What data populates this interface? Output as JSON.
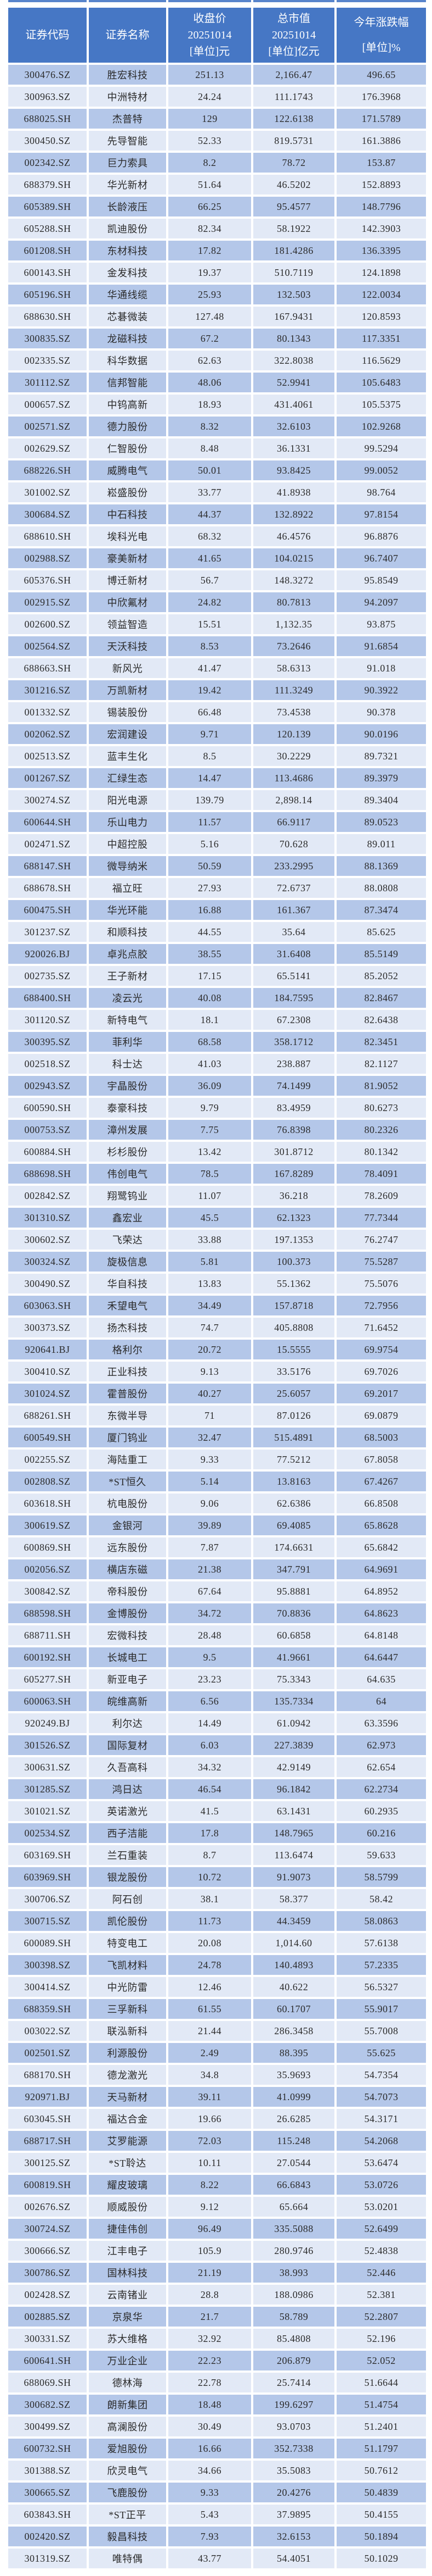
{
  "colors": {
    "header_bg": "#4677c5",
    "header_text": "#ffffff",
    "row_dark": "#b4c7e9",
    "row_light": "#e2e9f6",
    "text": "#2a2a2a"
  },
  "table": {
    "headers": [
      {
        "id": "code",
        "lines": [
          "证券代码"
        ]
      },
      {
        "id": "name",
        "lines": [
          "证券名称"
        ]
      },
      {
        "id": "close",
        "lines": [
          "收盘价",
          "20251014",
          "[单位]元"
        ]
      },
      {
        "id": "mktcap",
        "lines": [
          "总市值",
          "20251014",
          "[单位]亿元"
        ]
      },
      {
        "id": "ytd",
        "lines": [
          "今年涨跌幅",
          "[单位]%"
        ]
      }
    ],
    "rows": [
      [
        "300476.SZ",
        "胜宏科技",
        "251.13",
        "2,166.47",
        "496.65"
      ],
      [
        "300963.SZ",
        "中洲特材",
        "24.24",
        "111.1743",
        "176.3968"
      ],
      [
        "688025.SH",
        "杰普特",
        "129",
        "122.6138",
        "171.5789"
      ],
      [
        "300450.SZ",
        "先导智能",
        "52.33",
        "819.5731",
        "161.3886"
      ],
      [
        "002342.SZ",
        "巨力索具",
        "8.2",
        "78.72",
        "153.87"
      ],
      [
        "688379.SH",
        "华光新材",
        "51.64",
        "46.5202",
        "152.8893"
      ],
      [
        "605389.SH",
        "长龄液压",
        "66.25",
        "95.4577",
        "148.7796"
      ],
      [
        "605288.SH",
        "凯迪股份",
        "82.34",
        "58.1922",
        "142.3903"
      ],
      [
        "601208.SH",
        "东材科技",
        "17.82",
        "181.4286",
        "136.3395"
      ],
      [
        "600143.SH",
        "金发科技",
        "19.37",
        "510.7119",
        "124.1898"
      ],
      [
        "605196.SH",
        "华通线缆",
        "25.93",
        "132.503",
        "122.0034"
      ],
      [
        "688630.SH",
        "芯碁微装",
        "127.48",
        "167.9431",
        "120.8593"
      ],
      [
        "300835.SZ",
        "龙磁科技",
        "67.2",
        "80.1343",
        "117.3351"
      ],
      [
        "002335.SZ",
        "科华数据",
        "62.63",
        "322.8038",
        "116.5629"
      ],
      [
        "301112.SZ",
        "信邦智能",
        "48.06",
        "52.9941",
        "105.6483"
      ],
      [
        "000657.SZ",
        "中钨高新",
        "18.93",
        "431.4061",
        "105.5375"
      ],
      [
        "002571.SZ",
        "德力股份",
        "8.32",
        "32.6103",
        "102.9268"
      ],
      [
        "002629.SZ",
        "仁智股份",
        "8.48",
        "36.1331",
        "99.5294"
      ],
      [
        "688226.SH",
        "威腾电气",
        "50.01",
        "93.8425",
        "99.0052"
      ],
      [
        "301002.SZ",
        "崧盛股份",
        "33.77",
        "41.8938",
        "98.764"
      ],
      [
        "300684.SZ",
        "中石科技",
        "44.37",
        "132.8922",
        "97.8154"
      ],
      [
        "688610.SH",
        "埃科光电",
        "68.32",
        "46.4576",
        "96.8876"
      ],
      [
        "002988.SZ",
        "豪美新材",
        "41.65",
        "104.0215",
        "96.7407"
      ],
      [
        "605376.SH",
        "博迁新材",
        "56.7",
        "148.3272",
        "95.8549"
      ],
      [
        "002915.SZ",
        "中欣氟材",
        "24.82",
        "80.7813",
        "94.2097"
      ],
      [
        "002600.SZ",
        "领益智造",
        "15.51",
        "1,132.35",
        "93.875"
      ],
      [
        "002564.SZ",
        "天沃科技",
        "8.53",
        "73.2646",
        "91.6854"
      ],
      [
        "688663.SH",
        "新风光",
        "41.47",
        "58.6313",
        "91.018"
      ],
      [
        "301216.SZ",
        "万凯新材",
        "19.42",
        "111.3249",
        "90.3922"
      ],
      [
        "001332.SZ",
        "锡装股份",
        "66.48",
        "73.4538",
        "90.378"
      ],
      [
        "002062.SZ",
        "宏润建设",
        "9.71",
        "120.139",
        "90.0196"
      ],
      [
        "002513.SZ",
        "蓝丰生化",
        "8.5",
        "30.2229",
        "89.7321"
      ],
      [
        "001267.SZ",
        "汇绿生态",
        "14.47",
        "113.4686",
        "89.3979"
      ],
      [
        "300274.SZ",
        "阳光电源",
        "139.79",
        "2,898.14",
        "89.3404"
      ],
      [
        "600644.SH",
        "乐山电力",
        "11.57",
        "66.9117",
        "89.0523"
      ],
      [
        "002471.SZ",
        "中超控股",
        "5.16",
        "70.628",
        "89.011"
      ],
      [
        "688147.SH",
        "微导纳米",
        "50.59",
        "233.2995",
        "88.1369"
      ],
      [
        "688678.SH",
        "福立旺",
        "27.93",
        "72.6737",
        "88.0808"
      ],
      [
        "600475.SH",
        "华光环能",
        "16.88",
        "161.367",
        "87.3474"
      ],
      [
        "301237.SZ",
        "和顺科技",
        "44.55",
        "35.64",
        "85.625"
      ],
      [
        "920026.BJ",
        "卓兆点胶",
        "38.55",
        "31.6408",
        "85.5149"
      ],
      [
        "002735.SZ",
        "王子新材",
        "17.15",
        "65.5141",
        "85.2052"
      ],
      [
        "688400.SH",
        "凌云光",
        "40.08",
        "184.7595",
        "82.8467"
      ],
      [
        "301120.SZ",
        "新特电气",
        "18.1",
        "67.2308",
        "82.6438"
      ],
      [
        "300395.SZ",
        "菲利华",
        "68.58",
        "358.1712",
        "82.3451"
      ],
      [
        "002518.SZ",
        "科士达",
        "41.03",
        "238.887",
        "82.1127"
      ],
      [
        "002943.SZ",
        "宇晶股份",
        "36.09",
        "74.1499",
        "81.9052"
      ],
      [
        "600590.SH",
        "泰豪科技",
        "9.79",
        "83.4959",
        "80.6273"
      ],
      [
        "000753.SZ",
        "漳州发展",
        "7.75",
        "76.8398",
        "80.2326"
      ],
      [
        "600884.SH",
        "杉杉股份",
        "13.42",
        "301.8712",
        "80.1342"
      ],
      [
        "688698.SH",
        "伟创电气",
        "78.5",
        "167.8289",
        "78.4091"
      ],
      [
        "002842.SZ",
        "翔鹭钨业",
        "11.07",
        "36.218",
        "78.2609"
      ],
      [
        "301310.SZ",
        "鑫宏业",
        "45.5",
        "62.1323",
        "77.7344"
      ],
      [
        "300602.SZ",
        "飞荣达",
        "33.88",
        "197.1353",
        "76.2747"
      ],
      [
        "300324.SZ",
        "旋极信息",
        "5.81",
        "100.373",
        "75.5287"
      ],
      [
        "300490.SZ",
        "华自科技",
        "13.83",
        "55.1362",
        "75.5076"
      ],
      [
        "603063.SH",
        "禾望电气",
        "34.49",
        "157.8718",
        "72.7956"
      ],
      [
        "300373.SZ",
        "扬杰科技",
        "74.7",
        "405.8808",
        "71.6452"
      ],
      [
        "920641.BJ",
        "格利尔",
        "20.72",
        "15.5555",
        "69.9754"
      ],
      [
        "300410.SZ",
        "正业科技",
        "9.13",
        "33.5176",
        "69.7026"
      ],
      [
        "301024.SZ",
        "霍普股份",
        "40.27",
        "25.6057",
        "69.2017"
      ],
      [
        "688261.SH",
        "东微半导",
        "71",
        "87.0126",
        "69.0879"
      ],
      [
        "600549.SH",
        "厦门钨业",
        "32.47",
        "515.4891",
        "68.5003"
      ],
      [
        "002255.SZ",
        "海陆重工",
        "9.33",
        "77.5212",
        "67.8058"
      ],
      [
        "002808.SZ",
        "*ST恒久",
        "5.14",
        "13.8163",
        "67.4267"
      ],
      [
        "603618.SH",
        "杭电股份",
        "9.06",
        "62.6386",
        "66.8508"
      ],
      [
        "300619.SZ",
        "金银河",
        "39.89",
        "69.4085",
        "65.8628"
      ],
      [
        "600869.SH",
        "远东股份",
        "7.87",
        "174.6631",
        "65.6842"
      ],
      [
        "002056.SZ",
        "横店东磁",
        "21.38",
        "347.791",
        "64.9691"
      ],
      [
        "300842.SZ",
        "帝科股份",
        "67.64",
        "95.8881",
        "64.8952"
      ],
      [
        "688598.SH",
        "金博股份",
        "34.72",
        "70.8836",
        "64.8623"
      ],
      [
        "688711.SH",
        "宏微科技",
        "28.48",
        "60.6858",
        "64.8148"
      ],
      [
        "600192.SH",
        "长城电工",
        "9.5",
        "41.9661",
        "64.6447"
      ],
      [
        "605277.SH",
        "新亚电子",
        "23.23",
        "75.3343",
        "64.635"
      ],
      [
        "600063.SH",
        "皖维高新",
        "6.56",
        "135.7334",
        "64"
      ],
      [
        "920249.BJ",
        "利尔达",
        "14.49",
        "61.0942",
        "63.3596"
      ],
      [
        "301526.SZ",
        "国际复材",
        "6.03",
        "227.3839",
        "62.973"
      ],
      [
        "300631.SZ",
        "久吾高科",
        "34.32",
        "42.9149",
        "62.654"
      ],
      [
        "301285.SZ",
        "鸿日达",
        "46.54",
        "96.1842",
        "62.2734"
      ],
      [
        "301021.SZ",
        "英诺激光",
        "41.5",
        "63.1431",
        "60.2935"
      ],
      [
        "002534.SZ",
        "西子洁能",
        "17.8",
        "148.7965",
        "60.216"
      ],
      [
        "603169.SH",
        "兰石重装",
        "8.7",
        "113.6474",
        "59.633"
      ],
      [
        "603969.SH",
        "银龙股份",
        "10.72",
        "91.9073",
        "58.5799"
      ],
      [
        "300706.SZ",
        "阿石创",
        "38.1",
        "58.377",
        "58.42"
      ],
      [
        "300715.SZ",
        "凯伦股份",
        "11.73",
        "44.3459",
        "58.0863"
      ],
      [
        "600089.SH",
        "特变电工",
        "20.08",
        "1,014.60",
        "57.6138"
      ],
      [
        "300398.SZ",
        "飞凯材料",
        "24.78",
        "140.4893",
        "57.2335"
      ],
      [
        "300414.SZ",
        "中光防雷",
        "12.46",
        "40.622",
        "56.5327"
      ],
      [
        "688359.SH",
        "三孚新科",
        "61.55",
        "60.1707",
        "55.9017"
      ],
      [
        "003022.SZ",
        "联泓新科",
        "21.44",
        "286.3458",
        "55.7008"
      ],
      [
        "002501.SZ",
        "利源股份",
        "2.49",
        "88.395",
        "55.625"
      ],
      [
        "688170.SH",
        "德龙激光",
        "34.8",
        "35.9693",
        "54.7354"
      ],
      [
        "920971.BJ",
        "天马新材",
        "39.11",
        "41.0999",
        "54.7073"
      ],
      [
        "603045.SH",
        "福达合金",
        "19.66",
        "26.6285",
        "54.3171"
      ],
      [
        "688717.SH",
        "艾罗能源",
        "72.03",
        "115.248",
        "54.2068"
      ],
      [
        "300125.SZ",
        "*ST聆达",
        "10.11",
        "27.0544",
        "53.6474"
      ],
      [
        "600819.SH",
        "耀皮玻璃",
        "8.22",
        "66.6843",
        "53.0726"
      ],
      [
        "002676.SZ",
        "顺威股份",
        "9.12",
        "65.664",
        "53.0201"
      ],
      [
        "300724.SZ",
        "捷佳伟创",
        "96.49",
        "335.5088",
        "52.6499"
      ],
      [
        "300666.SZ",
        "江丰电子",
        "105.9",
        "280.9746",
        "52.4838"
      ],
      [
        "300786.SZ",
        "国林科技",
        "21.19",
        "38.993",
        "52.446"
      ],
      [
        "002428.SZ",
        "云南锗业",
        "28.8",
        "188.0986",
        "52.381"
      ],
      [
        "002885.SZ",
        "京泉华",
        "21.7",
        "58.789",
        "52.2807"
      ],
      [
        "300331.SZ",
        "苏大维格",
        "32.92",
        "85.4808",
        "52.196"
      ],
      [
        "600641.SH",
        "万业企业",
        "22.23",
        "206.879",
        "52.052"
      ],
      [
        "688069.SH",
        "德林海",
        "22.78",
        "25.7414",
        "51.6644"
      ],
      [
        "300682.SZ",
        "朗新集团",
        "18.48",
        "199.6297",
        "51.4754"
      ],
      [
        "300499.SZ",
        "高澜股份",
        "30.49",
        "93.0703",
        "51.2401"
      ],
      [
        "600732.SH",
        "爱旭股份",
        "16.66",
        "352.7338",
        "51.1797"
      ],
      [
        "301388.SZ",
        "欣灵电气",
        "34.66",
        "35.5083",
        "50.7612"
      ],
      [
        "300665.SZ",
        "飞鹿股份",
        "9.33",
        "20.4276",
        "50.4839"
      ],
      [
        "603843.SH",
        "*ST正平",
        "5.43",
        "37.9895",
        "50.4155"
      ],
      [
        "002420.SZ",
        "毅昌科技",
        "7.93",
        "32.6153",
        "50.1894"
      ],
      [
        "301319.SZ",
        "唯特偶",
        "43.77",
        "54.4051",
        "50.1029"
      ]
    ]
  }
}
